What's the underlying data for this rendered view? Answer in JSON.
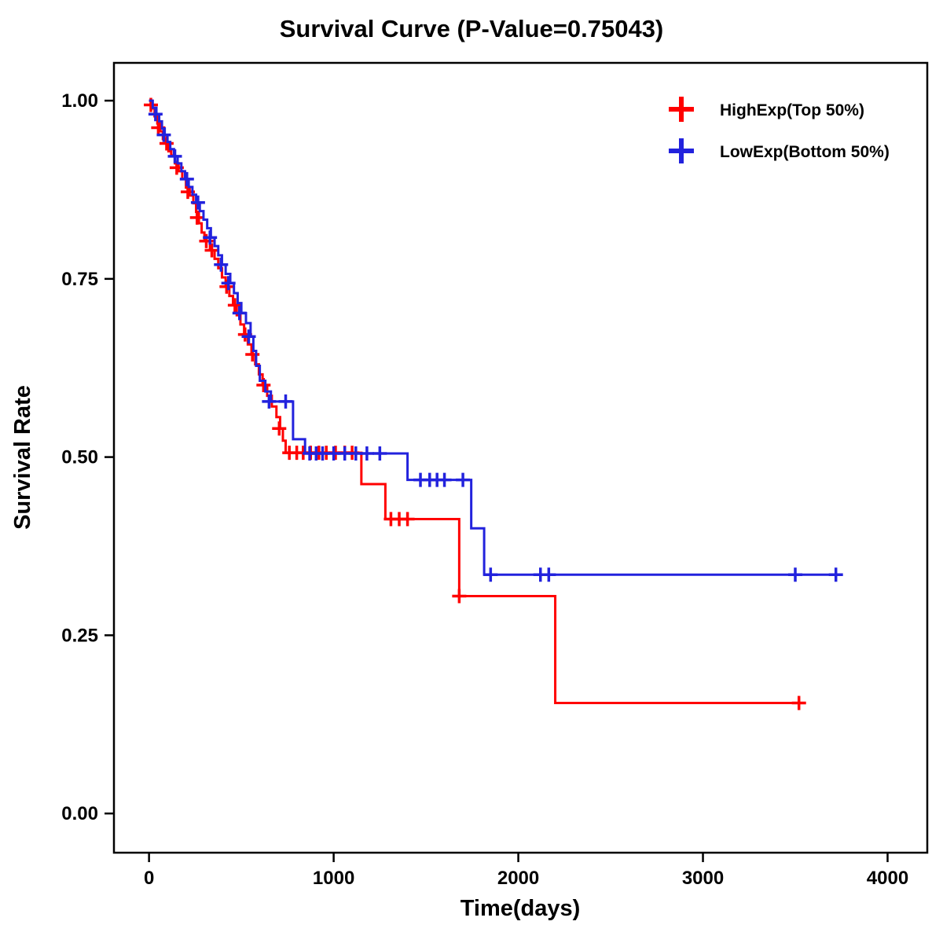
{
  "page": {
    "background": "#FFFFFF"
  },
  "chart_data": {
    "type": "line",
    "variant": "kaplan-meier-step",
    "title": "Survival Curve (P-Value=0.75043)",
    "xlabel": "Time(days)",
    "ylabel": "Survival Rate",
    "p_value": "0.75043",
    "grid": false,
    "legend_position": "top-right-inside",
    "xlim": [
      -190,
      4215
    ],
    "ylim": [
      -0.055,
      1.053
    ],
    "x_ticks": [
      0,
      1000,
      2000,
      3000,
      4000
    ],
    "x_tick_labels": [
      "0",
      "1000",
      "2000",
      "3000",
      "4000"
    ],
    "y_ticks": [
      0,
      0.25,
      0.5,
      0.75,
      1
    ],
    "y_tick_labels": [
      "0.00",
      "0.25",
      "0.50",
      "0.75",
      "1.00"
    ],
    "series": [
      {
        "name": "HighExp(Top 50%)",
        "color": "#FF0000",
        "end_time": 3520,
        "steps": [
          [
            0,
            1.0
          ],
          [
            15,
            0.989
          ],
          [
            30,
            0.978
          ],
          [
            45,
            0.968
          ],
          [
            60,
            0.957
          ],
          [
            75,
            0.946
          ],
          [
            90,
            0.94
          ],
          [
            105,
            0.929
          ],
          [
            120,
            0.923
          ],
          [
            140,
            0.912
          ],
          [
            160,
            0.901
          ],
          [
            180,
            0.89
          ],
          [
            200,
            0.878
          ],
          [
            220,
            0.867
          ],
          [
            240,
            0.856
          ],
          [
            255,
            0.844
          ],
          [
            270,
            0.828
          ],
          [
            285,
            0.815
          ],
          [
            300,
            0.803
          ],
          [
            330,
            0.79
          ],
          [
            355,
            0.778
          ],
          [
            375,
            0.765
          ],
          [
            395,
            0.752
          ],
          [
            415,
            0.739
          ],
          [
            435,
            0.726
          ],
          [
            455,
            0.713
          ],
          [
            475,
            0.699
          ],
          [
            495,
            0.686
          ],
          [
            515,
            0.672
          ],
          [
            535,
            0.658
          ],
          [
            555,
            0.644
          ],
          [
            575,
            0.63
          ],
          [
            595,
            0.616
          ],
          [
            615,
            0.601
          ],
          [
            640,
            0.586
          ],
          [
            665,
            0.571
          ],
          [
            690,
            0.556
          ],
          [
            710,
            0.54
          ],
          [
            725,
            0.523
          ],
          [
            740,
            0.506
          ],
          [
            1150,
            0.462
          ],
          [
            1280,
            0.413
          ],
          [
            1680,
            0.305
          ],
          [
            2200,
            0.155
          ]
        ],
        "censors": [
          [
            10,
            0.994
          ],
          [
            50,
            0.962
          ],
          [
            95,
            0.94
          ],
          [
            150,
            0.906
          ],
          [
            210,
            0.872
          ],
          [
            260,
            0.836
          ],
          [
            310,
            0.803
          ],
          [
            340,
            0.79
          ],
          [
            420,
            0.739
          ],
          [
            465,
            0.713
          ],
          [
            520,
            0.672
          ],
          [
            560,
            0.644
          ],
          [
            620,
            0.601
          ],
          [
            705,
            0.54
          ],
          [
            760,
            0.506
          ],
          [
            800,
            0.506
          ],
          [
            835,
            0.506
          ],
          [
            875,
            0.506
          ],
          [
            920,
            0.506
          ],
          [
            960,
            0.506
          ],
          [
            1010,
            0.506
          ],
          [
            1060,
            0.506
          ],
          [
            1100,
            0.506
          ],
          [
            1310,
            0.413
          ],
          [
            1355,
            0.413
          ],
          [
            1400,
            0.413
          ],
          [
            1680,
            0.305
          ],
          [
            3520,
            0.155
          ]
        ]
      },
      {
        "name": "LowExp(Bottom 50%)",
        "color": "#2222DD",
        "end_time": 3720,
        "steps": [
          [
            0,
            1.0
          ],
          [
            20,
            0.99
          ],
          [
            40,
            0.981
          ],
          [
            55,
            0.971
          ],
          [
            70,
            0.961
          ],
          [
            85,
            0.952
          ],
          [
            100,
            0.942
          ],
          [
            115,
            0.932
          ],
          [
            135,
            0.922
          ],
          [
            155,
            0.912
          ],
          [
            175,
            0.901
          ],
          [
            195,
            0.89
          ],
          [
            215,
            0.879
          ],
          [
            235,
            0.868
          ],
          [
            255,
            0.857
          ],
          [
            275,
            0.845
          ],
          [
            295,
            0.833
          ],
          [
            315,
            0.821
          ],
          [
            335,
            0.808
          ],
          [
            355,
            0.796
          ],
          [
            375,
            0.783
          ],
          [
            395,
            0.77
          ],
          [
            415,
            0.757
          ],
          [
            440,
            0.744
          ],
          [
            460,
            0.73
          ],
          [
            480,
            0.716
          ],
          [
            500,
            0.702
          ],
          [
            525,
            0.688
          ],
          [
            550,
            0.669
          ],
          [
            565,
            0.649
          ],
          [
            580,
            0.628
          ],
          [
            600,
            0.607
          ],
          [
            630,
            0.592
          ],
          [
            660,
            0.578
          ],
          [
            780,
            0.525
          ],
          [
            845,
            0.505
          ],
          [
            1400,
            0.468
          ],
          [
            1745,
            0.4
          ],
          [
            1815,
            0.335
          ]
        ],
        "censors": [
          [
            35,
            0.981
          ],
          [
            80,
            0.952
          ],
          [
            140,
            0.922
          ],
          [
            205,
            0.89
          ],
          [
            265,
            0.857
          ],
          [
            330,
            0.808
          ],
          [
            390,
            0.77
          ],
          [
            430,
            0.744
          ],
          [
            490,
            0.702
          ],
          [
            540,
            0.669
          ],
          [
            650,
            0.578
          ],
          [
            740,
            0.578
          ],
          [
            870,
            0.505
          ],
          [
            905,
            0.505
          ],
          [
            940,
            0.505
          ],
          [
            1000,
            0.505
          ],
          [
            1060,
            0.505
          ],
          [
            1120,
            0.505
          ],
          [
            1180,
            0.505
          ],
          [
            1250,
            0.505
          ],
          [
            1470,
            0.468
          ],
          [
            1520,
            0.468
          ],
          [
            1560,
            0.468
          ],
          [
            1600,
            0.468
          ],
          [
            1700,
            0.468
          ],
          [
            1850,
            0.335
          ],
          [
            2120,
            0.335
          ],
          [
            2165,
            0.335
          ],
          [
            3500,
            0.335
          ],
          [
            3720,
            0.335
          ]
        ]
      }
    ]
  }
}
